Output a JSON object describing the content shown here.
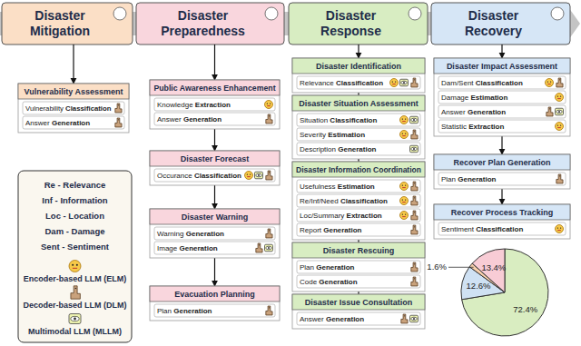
{
  "columns": [
    {
      "title_lines": [
        "Disaster",
        "Mitigation"
      ],
      "color": "#fbdfc6",
      "sections": [
        {
          "title": "Vulnerability Assessment",
          "items": [
            {
              "text": "Vulnerability",
              "task": "Classification",
              "models": [
                "DLM"
              ]
            },
            {
              "text": "Answer",
              "task": "Generation",
              "models": [
                "DLM"
              ]
            }
          ]
        }
      ]
    },
    {
      "title_lines": [
        "Disaster",
        "Preparedness"
      ],
      "color": "#f9d6dd",
      "sections": [
        {
          "title": "Public Awareness Enhancement",
          "items": [
            {
              "text": "Knowledge",
              "task": "Extraction",
              "models": [
                "ELM"
              ]
            },
            {
              "text": "Answer",
              "task": "Generation",
              "models": [
                "DLM"
              ]
            }
          ]
        },
        {
          "title": "Disaster Forecast",
          "items": [
            {
              "text": "Occurance",
              "task": "Classification",
              "models": [
                "ELM",
                "MLLM",
                "DLM"
              ]
            }
          ]
        },
        {
          "title": "Disaster Warning",
          "items": [
            {
              "text": "Warning",
              "task": "Generation",
              "models": [
                "DLM"
              ]
            },
            {
              "text": "Image",
              "task": "Generation",
              "models": [
                "DLM",
                "MLLM"
              ]
            }
          ]
        },
        {
          "title": "Evacuation Planning",
          "items": [
            {
              "text": "Plan",
              "task": "Generation",
              "models": [
                "DLM"
              ]
            }
          ]
        }
      ]
    },
    {
      "title_lines": [
        "Disaster",
        "Response"
      ],
      "color": "#d8edc2",
      "sections": [
        {
          "title": "Disaster Identification",
          "items": [
            {
              "text": "Relevance",
              "task": "Classification",
              "models": [
                "ELM",
                "MLLM",
                "DLM"
              ]
            }
          ]
        },
        {
          "title": "Disaster Situation Assessment",
          "items": [
            {
              "text": "Situation",
              "task": "Classification",
              "models": [
                "ELM",
                "MLLM"
              ]
            },
            {
              "text": "Severity",
              "task": "Estimation",
              "models": [
                "ELM",
                "DLM"
              ]
            },
            {
              "text": "Description",
              "task": "Generation",
              "models": [
                "MLLM"
              ]
            }
          ]
        },
        {
          "title": "Disaster Information Coordination",
          "items": [
            {
              "text": "Usefulness",
              "task": "Estimation",
              "models": [
                "ELM",
                "DLM"
              ]
            },
            {
              "text": "Re/Inf/Need",
              "task": "Classification",
              "models": [
                "ELM",
                "DLM"
              ]
            },
            {
              "text": "Loc/Summary",
              "task": "Extraction",
              "models": [
                "ELM",
                "DLM"
              ]
            },
            {
              "text": "Report",
              "task": "Generation",
              "models": [
                "DLM"
              ]
            }
          ]
        },
        {
          "title": "Disaster Rescuing",
          "items": [
            {
              "text": "Plan",
              "task": "Generation",
              "models": [
                "DLM"
              ]
            },
            {
              "text": "Code",
              "task": "Generation",
              "models": [
                "DLM"
              ]
            }
          ]
        },
        {
          "title": "Disaster Issue Consultation",
          "items": [
            {
              "text": "Answer",
              "task": "Generation",
              "models": [
                "DLM",
                "MLLM"
              ]
            }
          ]
        }
      ]
    },
    {
      "title_lines": [
        "Disaster",
        "Recovery"
      ],
      "color": "#d6e6f6",
      "sections": [
        {
          "title": "Disaster Impact Assessment",
          "items": [
            {
              "text": "Dam/Sent",
              "task": "Classification",
              "models": [
                "ELM",
                "DLM"
              ]
            },
            {
              "text": "Damage",
              "task": "Estimation",
              "models": [
                "ELM"
              ]
            },
            {
              "text": "Answer",
              "task": "Generation",
              "models": [
                "DLM",
                "MLLM"
              ]
            },
            {
              "text": "Statistic",
              "task": "Extraction",
              "models": [
                "ELM"
              ]
            }
          ]
        },
        {
          "title": "Recover Plan Generation",
          "items": [
            {
              "text": "Plan",
              "task": "Generation",
              "models": [
                "DLM"
              ]
            }
          ]
        },
        {
          "title": "Recover Process Tracking",
          "items": [
            {
              "text": "Sentiment",
              "task": "Classification",
              "models": [
                "ELM"
              ]
            }
          ]
        }
      ]
    }
  ],
  "legend": {
    "abbreviations": [
      "Re - Relevance",
      "Inf - Information",
      "Loc - Location",
      "Dam - Damage",
      "Sent - Sentiment"
    ],
    "models": [
      {
        "key": "ELM",
        "label": "Encoder-based LLM (ELM)"
      },
      {
        "key": "DLM",
        "label": "Decoder-based LLM (DLM)"
      },
      {
        "key": "MLLM",
        "label": "Multimodal LLM (MLLM)"
      }
    ]
  },
  "chart_data": {
    "type": "pie",
    "values": [
      72.4,
      12.6,
      1.6,
      13.4
    ],
    "value_labels": [
      "72.4%",
      "12.6%",
      "1.6%",
      "13.4%"
    ],
    "colors": [
      "#d9edc1",
      "#cfe1f3",
      "#f9d0ac",
      "#f8ccd5"
    ],
    "data_labels": true
  }
}
